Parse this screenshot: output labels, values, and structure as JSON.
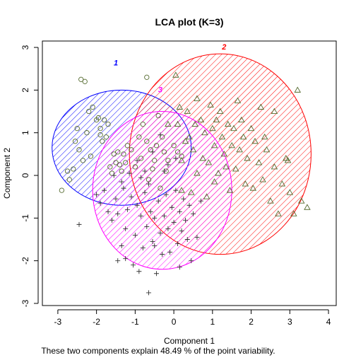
{
  "chart_data": {
    "type": "scatter",
    "title": "LCA plot (K=3)",
    "xlabel": "Component 1",
    "ylabel": "Component 2",
    "subtitle": "These two components explain 48.49 % of the point variability.",
    "xlim": [
      -3.4,
      4.2
    ],
    "ylim": [
      -3.05,
      3.15
    ],
    "x_ticks": [
      -3,
      -2,
      -1,
      0,
      1,
      2,
      3,
      4
    ],
    "y_ticks": [
      -3,
      -2,
      -1,
      0,
      1,
      2,
      3
    ],
    "x_tick_labels": [
      "-3",
      "-2",
      "-1",
      "0",
      "1",
      "2",
      "3",
      "4"
    ],
    "y_tick_labels": [
      "-3",
      "-2",
      "-1",
      "0",
      "1",
      "2",
      "3"
    ],
    "grid": false,
    "clusters": [
      {
        "label": "1",
        "color": "#0000ff",
        "marker": "circle",
        "ellipse": {
          "cx": -1.35,
          "cy": 0.65,
          "rx": 1.8,
          "ry": 1.35
        },
        "label_pos": [
          -1.5,
          2.58
        ],
        "points": [
          [
            -2.9,
            -0.35
          ],
          [
            -2.75,
            0.1
          ],
          [
            -2.7,
            -0.1
          ],
          [
            -2.6,
            0.15
          ],
          [
            -2.55,
            0.8
          ],
          [
            -2.5,
            1.1
          ],
          [
            -2.45,
            0.6
          ],
          [
            -2.4,
            2.25
          ],
          [
            -2.35,
            0.35
          ],
          [
            -2.3,
            2.2
          ],
          [
            -2.25,
            1.0
          ],
          [
            -2.2,
            1.5
          ],
          [
            -2.1,
            1.6
          ],
          [
            -2.0,
            1.3
          ],
          [
            -1.95,
            1.35
          ],
          [
            -1.9,
            1.1
          ],
          [
            -1.85,
            0.8
          ],
          [
            -1.8,
            1.3
          ],
          [
            -1.75,
            0.9
          ],
          [
            -1.7,
            1.2
          ],
          [
            -1.65,
            0.2
          ],
          [
            -1.6,
            0.05
          ],
          [
            -1.55,
            0.5
          ],
          [
            -1.5,
            0.3
          ],
          [
            -1.45,
            0.55
          ],
          [
            -1.4,
            0.25
          ],
          [
            -1.35,
            0.1
          ],
          [
            -1.3,
            0.5
          ],
          [
            -1.25,
            0.3
          ],
          [
            -1.2,
            0.7
          ],
          [
            -1.1,
            0.6
          ],
          [
            -1.0,
            0.2
          ],
          [
            -0.9,
            0.9
          ],
          [
            -0.85,
            0.4
          ],
          [
            -0.8,
            1.2
          ],
          [
            -0.7,
            0.8
          ],
          [
            -0.6,
            0.6
          ],
          [
            -0.55,
            0.15
          ],
          [
            -0.5,
            0.35
          ],
          [
            -0.45,
            0.7
          ],
          [
            -0.4,
            1.4
          ],
          [
            -0.3,
            0.9
          ],
          [
            -0.25,
            0.55
          ],
          [
            -0.2,
            0.1
          ],
          [
            -0.15,
            0.35
          ],
          [
            0.0,
            0.7
          ],
          [
            0.1,
            0.55
          ],
          [
            0.2,
            0.45
          ],
          [
            -2.15,
            0.45
          ],
          [
            -1.9,
            0.95
          ],
          [
            -0.7,
            2.3
          ],
          [
            -0.35,
            -0.3
          ],
          [
            -0.65,
            -0.1
          ]
        ]
      },
      {
        "label": "2",
        "color": "#ff0000",
        "marker": "triangle",
        "ellipse": {
          "cx": 1.2,
          "cy": 0.5,
          "rx": 2.35,
          "ry": 2.35
        },
        "label_pos": [
          1.3,
          2.95
        ],
        "points": [
          [
            0.05,
            2.35
          ],
          [
            0.1,
            1.2
          ],
          [
            0.2,
            0.35
          ],
          [
            0.3,
            0.8
          ],
          [
            0.35,
            1.5
          ],
          [
            0.4,
            0.9
          ],
          [
            0.5,
            0.6
          ],
          [
            0.55,
            1.2
          ],
          [
            0.6,
            1.8
          ],
          [
            0.7,
            1.3
          ],
          [
            0.75,
            0.4
          ],
          [
            0.8,
            1.0
          ],
          [
            0.9,
            0.3
          ],
          [
            1.0,
            1.1
          ],
          [
            1.05,
            0.7
          ],
          [
            1.1,
            1.3
          ],
          [
            1.15,
            0.05
          ],
          [
            1.2,
            1.5
          ],
          [
            1.25,
            0.9
          ],
          [
            1.3,
            0.5
          ],
          [
            1.35,
            0.2
          ],
          [
            1.4,
            1.2
          ],
          [
            1.5,
            0.7
          ],
          [
            1.55,
            1.1
          ],
          [
            1.6,
            0.15
          ],
          [
            1.7,
            0.6
          ],
          [
            1.75,
            1.3
          ],
          [
            1.8,
            0.9
          ],
          [
            1.9,
            0.4
          ],
          [
            2.0,
            1.1
          ],
          [
            2.05,
            -0.3
          ],
          [
            2.1,
            0.8
          ],
          [
            2.2,
            0.3
          ],
          [
            2.3,
            -0.1
          ],
          [
            2.4,
            0.6
          ],
          [
            2.5,
            -0.6
          ],
          [
            2.6,
            0.2
          ],
          [
            2.7,
            -0.9
          ],
          [
            2.8,
            -0.2
          ],
          [
            2.9,
            0.4
          ],
          [
            3.0,
            -0.4
          ],
          [
            3.1,
            -0.9
          ],
          [
            3.2,
            2.0
          ],
          [
            3.3,
            -0.6
          ],
          [
            3.45,
            -0.75
          ],
          [
            0.2,
            -0.35
          ],
          [
            0.45,
            -0.4
          ],
          [
            0.85,
            -0.5
          ],
          [
            1.45,
            -0.35
          ],
          [
            1.85,
            -0.2
          ],
          [
            2.25,
            1.6
          ],
          [
            2.6,
            1.5
          ],
          [
            0.6,
            0.05
          ],
          [
            1.05,
            -0.15
          ],
          [
            0.15,
            1.6
          ],
          [
            -0.15,
            1.2
          ],
          [
            0.95,
            1.65
          ],
          [
            1.65,
            1.75
          ],
          [
            2.35,
            0.9
          ],
          [
            2.95,
            0.35
          ]
        ]
      },
      {
        "label": "3",
        "color": "#ff00ff",
        "marker": "plus",
        "ellipse": {
          "cx": -0.3,
          "cy": -0.35,
          "rx": 1.8,
          "ry": 1.85
        },
        "label_pos": [
          -0.35,
          1.95
        ],
        "points": [
          [
            -2.45,
            -1.15
          ],
          [
            -2.0,
            -0.45
          ],
          [
            -1.9,
            -0.65
          ],
          [
            -1.8,
            -0.35
          ],
          [
            -1.7,
            -0.85
          ],
          [
            -1.6,
            -1.05
          ],
          [
            -1.5,
            -0.55
          ],
          [
            -1.45,
            -0.9
          ],
          [
            -1.35,
            -1.65
          ],
          [
            -1.3,
            -0.3
          ],
          [
            -1.25,
            -1.25
          ],
          [
            -1.2,
            -0.8
          ],
          [
            -1.1,
            -0.5
          ],
          [
            -1.05,
            -2.1
          ],
          [
            -1.0,
            -1.4
          ],
          [
            -0.95,
            -0.7
          ],
          [
            -0.9,
            -2.25
          ],
          [
            -0.85,
            -0.95
          ],
          [
            -0.8,
            -1.7
          ],
          [
            -0.75,
            -0.4
          ],
          [
            -0.7,
            -1.2
          ],
          [
            -0.65,
            -2.75
          ],
          [
            -0.6,
            -0.85
          ],
          [
            -0.55,
            -1.55
          ],
          [
            -0.5,
            -1.0
          ],
          [
            -0.45,
            -2.3
          ],
          [
            -0.4,
            -0.6
          ],
          [
            -0.35,
            -1.35
          ],
          [
            -0.3,
            -1.85
          ],
          [
            -0.25,
            -0.95
          ],
          [
            -0.2,
            -0.45
          ],
          [
            -0.15,
            -1.25
          ],
          [
            -0.1,
            -1.8
          ],
          [
            -0.05,
            -0.75
          ],
          [
            0.0,
            -1.1
          ],
          [
            0.05,
            -0.35
          ],
          [
            0.1,
            -1.6
          ],
          [
            0.15,
            -0.85
          ],
          [
            0.2,
            -1.3
          ],
          [
            0.25,
            -0.55
          ],
          [
            0.3,
            -1.05
          ],
          [
            0.35,
            -1.5
          ],
          [
            0.4,
            -0.7
          ],
          [
            0.45,
            -2.0
          ],
          [
            0.5,
            -0.9
          ],
          [
            0.6,
            -1.45
          ],
          [
            0.7,
            -0.6
          ],
          [
            -0.95,
            0.35
          ],
          [
            -0.75,
            0.1
          ],
          [
            -0.55,
            0.55
          ],
          [
            -0.35,
            0.95
          ],
          [
            -0.15,
            0.25
          ],
          [
            -1.15,
            0.05
          ],
          [
            -1.55,
            0.0
          ],
          [
            -0.65,
            -0.2
          ],
          [
            -1.35,
            -0.15
          ],
          [
            -0.85,
            -0.05
          ],
          [
            -0.25,
            0.1
          ],
          [
            0.05,
            0.4
          ],
          [
            -1.45,
            -2.0
          ],
          [
            -1.25,
            -1.95
          ],
          [
            -0.5,
            -1.65
          ],
          [
            0.15,
            -2.15
          ]
        ]
      }
    ]
  }
}
